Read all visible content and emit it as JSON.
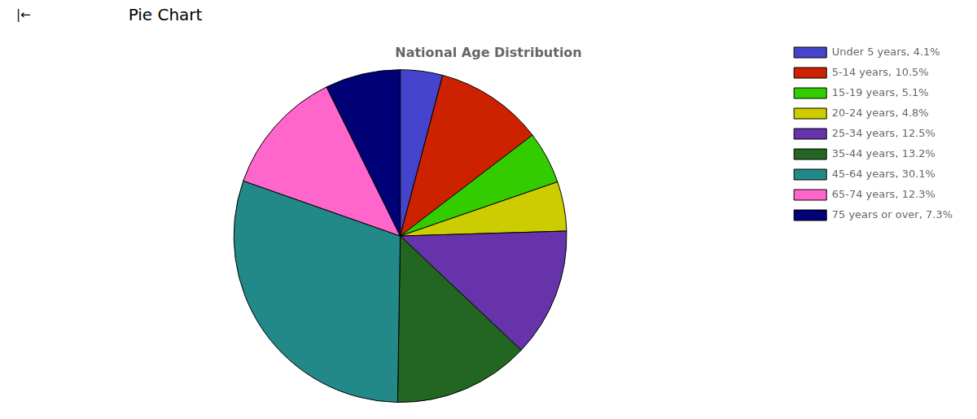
{
  "chart_data": {
    "type": "pie",
    "title": "National Age Distribution",
    "annotations": [
      "|←",
      "Pie Chart"
    ],
    "categories": [
      "Under 5 years, 4.1%",
      "5-14 years, 10.5%",
      "15-19 years, 5.1%",
      "20-24 years, 4.8%",
      "25-34 years, 12.5%",
      "35-44 years, 13.2%",
      "45-64 years, 30.1%",
      "65-74 years, 12.3%",
      "75 years or over, 7.3%"
    ],
    "values": [
      4.1,
      10.5,
      5.1,
      4.8,
      12.5,
      13.2,
      30.1,
      12.3,
      7.3
    ],
    "colors": [
      "#4444cc",
      "#cc2200",
      "#33cc00",
      "#cccc00",
      "#6633aa",
      "#226622",
      "#228888",
      "#ff66cc",
      "#000077"
    ],
    "legend": "right"
  }
}
